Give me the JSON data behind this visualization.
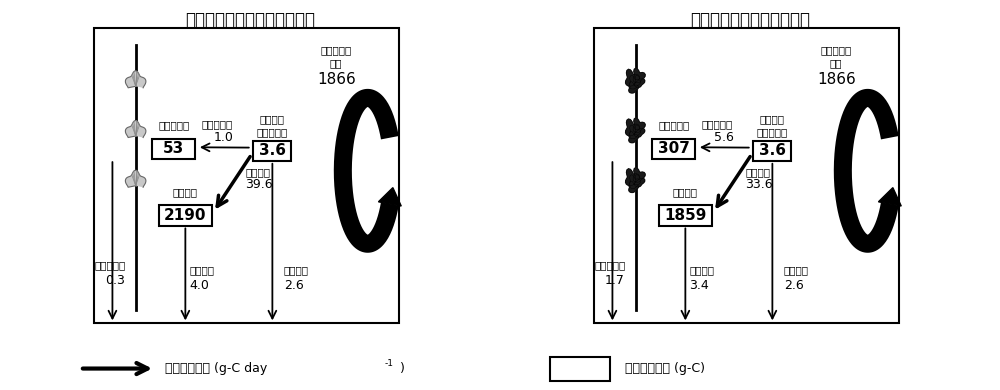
{
  "left_title": "温湯処理を行ったカキ養殖場",
  "right_title": "処理を行わないカキ養殖場",
  "legend_arrow": "有機物の流れ (g-C day",
  "legend_arrow2": "有機物の貯留 (g-C)",
  "left": {
    "igai_box": "53",
    "kaki_box": "2190",
    "pom_box": "3.6",
    "nagare_value": "1866",
    "igai_sesshoku": "1.0",
    "kaki_sesshoku": "39.6",
    "igai_haisetsu": "0.3",
    "kaki_haisetsu": "4.0",
    "shizen_chinko": "2.6"
  },
  "right": {
    "igai_box": "307",
    "kaki_box": "1859",
    "pom_box": "3.6",
    "nagare_value": "1866",
    "igai_sesshoku": "5.6",
    "kaki_sesshoku": "33.6",
    "igai_haisetsu": "1.7",
    "kaki_haisetsu": "3.4",
    "shizen_chinko": "2.6"
  }
}
